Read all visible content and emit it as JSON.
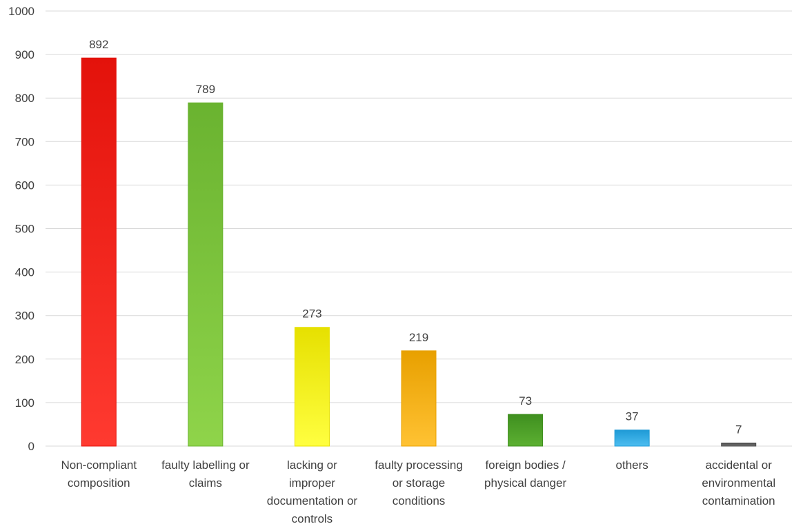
{
  "chart_data": {
    "type": "bar",
    "categories": [
      [
        "Non-compliant",
        "composition"
      ],
      [
        "faulty labelling or",
        "claims"
      ],
      [
        "lacking or",
        "improper",
        "documentation or",
        "controls"
      ],
      [
        "faulty processing",
        "or storage",
        "conditions"
      ],
      [
        "foreign bodies /",
        "physical danger"
      ],
      [
        "others"
      ],
      [
        "accidental or",
        "environmental",
        "contamination"
      ]
    ],
    "values": [
      892,
      789,
      273,
      219,
      73,
      37,
      7
    ],
    "data_labels": [
      "892",
      "789",
      "273",
      "219",
      "73",
      "37",
      "7"
    ],
    "colors": [
      "#e3120b",
      "#6ab330",
      "#e6e000",
      "#e8a000",
      "#3f8f1f",
      "#1f9ad6",
      "#4a4a4a"
    ],
    "highlight_colors": [
      "#ff3a30",
      "#8fd44a",
      "#ffff40",
      "#ffc233",
      "#5cb032",
      "#4dbdf0",
      "#7a7a7a"
    ],
    "ylim": [
      0,
      1000
    ],
    "yticks": [
      0,
      100,
      200,
      300,
      400,
      500,
      600,
      700,
      800,
      900,
      1000
    ],
    "ytick_labels": [
      "0",
      "100",
      "200",
      "300",
      "400",
      "500",
      "600",
      "700",
      "800",
      "900",
      "1000"
    ],
    "grid": true,
    "legend": "none",
    "title": "",
    "xlabel": "",
    "ylabel": ""
  }
}
